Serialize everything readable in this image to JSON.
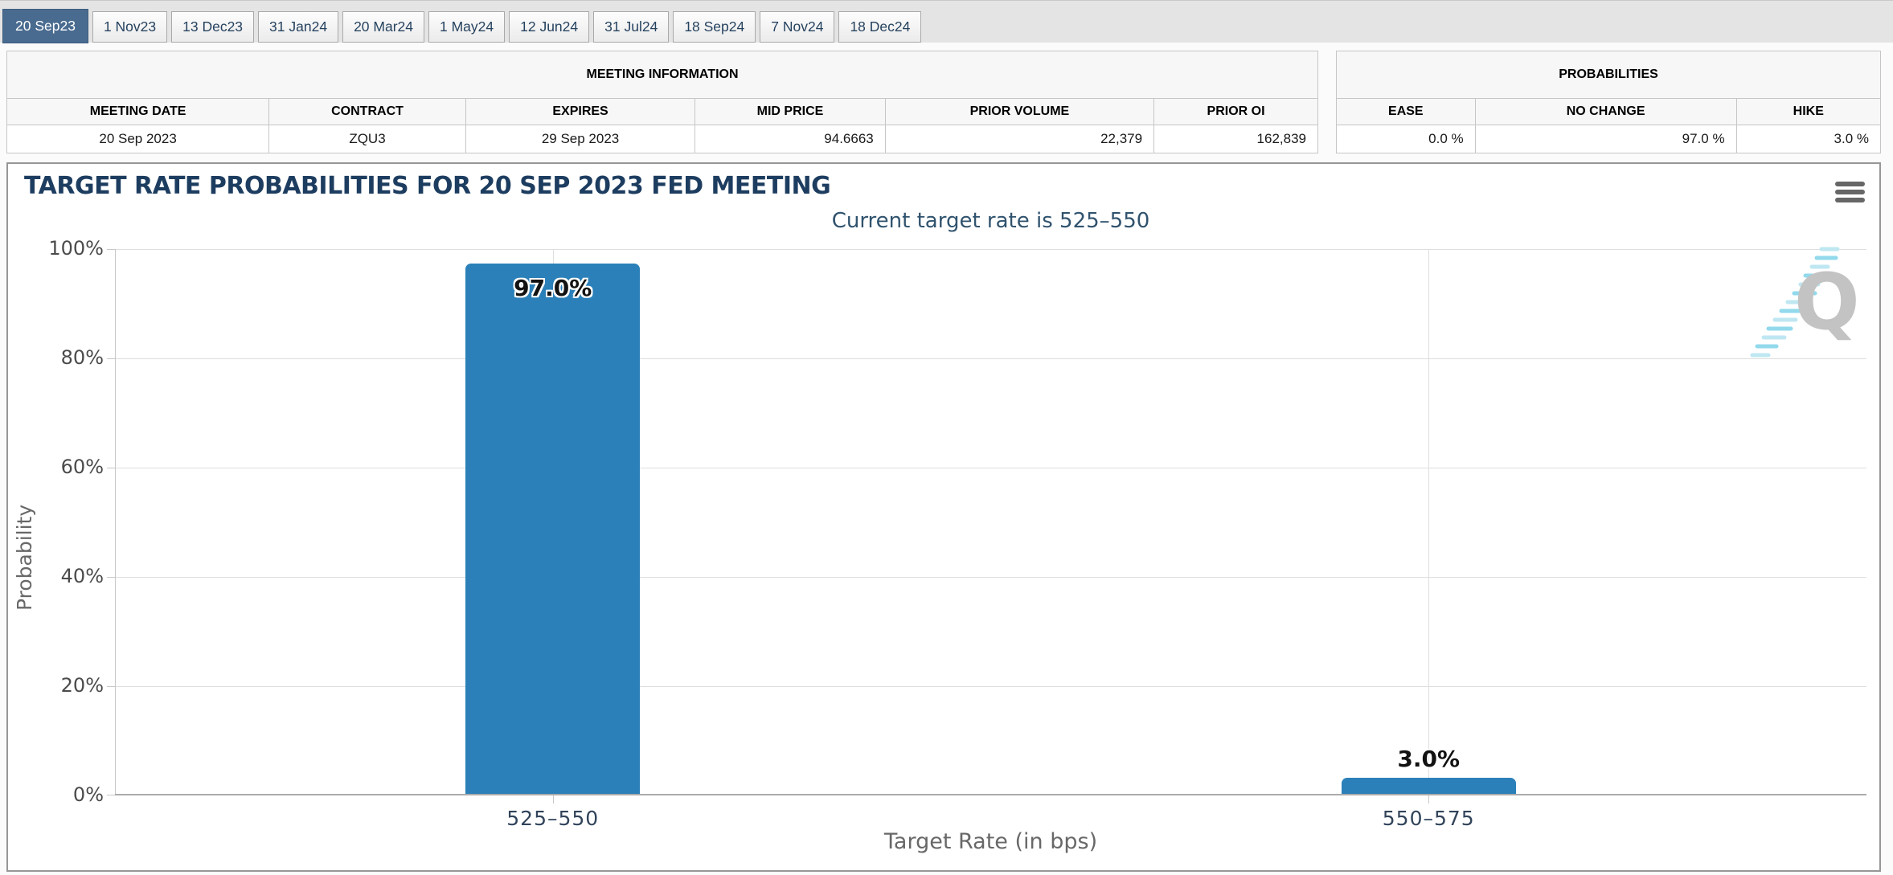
{
  "tabs": [
    {
      "label": "20 Sep23",
      "selected": true
    },
    {
      "label": "1 Nov23",
      "selected": false
    },
    {
      "label": "13 Dec23",
      "selected": false
    },
    {
      "label": "31 Jan24",
      "selected": false
    },
    {
      "label": "20 Mar24",
      "selected": false
    },
    {
      "label": "1 May24",
      "selected": false
    },
    {
      "label": "12 Jun24",
      "selected": false
    },
    {
      "label": "31 Jul24",
      "selected": false
    },
    {
      "label": "18 Sep24",
      "selected": false
    },
    {
      "label": "7 Nov24",
      "selected": false
    },
    {
      "label": "18 Dec24",
      "selected": false
    }
  ],
  "meeting_info": {
    "group_title": "MEETING INFORMATION",
    "columns": [
      "MEETING DATE",
      "CONTRACT",
      "EXPIRES",
      "MID PRICE",
      "PRIOR VOLUME",
      "PRIOR OI"
    ],
    "row": {
      "meeting_date": "20 Sep 2023",
      "contract": "ZQU3",
      "expires": "29 Sep 2023",
      "mid_price": "94.6663",
      "prior_volume": "22,379",
      "prior_oi": "162,839"
    }
  },
  "probabilities": {
    "group_title": "PROBABILITIES",
    "columns": [
      "EASE",
      "NO CHANGE",
      "HIKE"
    ],
    "row": {
      "ease": "0.0 %",
      "no_change": "97.0 %",
      "hike": "3.0 %"
    }
  },
  "chart_data": {
    "type": "bar",
    "title": "TARGET RATE PROBABILITIES FOR 20 SEP 2023 FED MEETING",
    "subtitle": "Current target rate is 525–550",
    "categories": [
      "525–550",
      "550–575"
    ],
    "values": [
      97.0,
      3.0
    ],
    "bar_labels": [
      "97.0%",
      "3.0%"
    ],
    "xlabel": "Target Rate (in bps)",
    "ylabel": "Probability",
    "ytick_labels": [
      "100%",
      "80%",
      "60%",
      "40%",
      "20%",
      "0%"
    ],
    "ylim": [
      0,
      100
    ],
    "grid": true,
    "legend": "none",
    "bar_color": "#2b80b9"
  },
  "icons": {
    "menu_icon": "hamburger-icon",
    "watermark_letter": "Q"
  },
  "colors": {
    "selected_tab_bg": "#4a6b90",
    "title_color": "#1d3d60",
    "subtitle_color": "#30536e",
    "bar_color": "#2b80b9"
  }
}
